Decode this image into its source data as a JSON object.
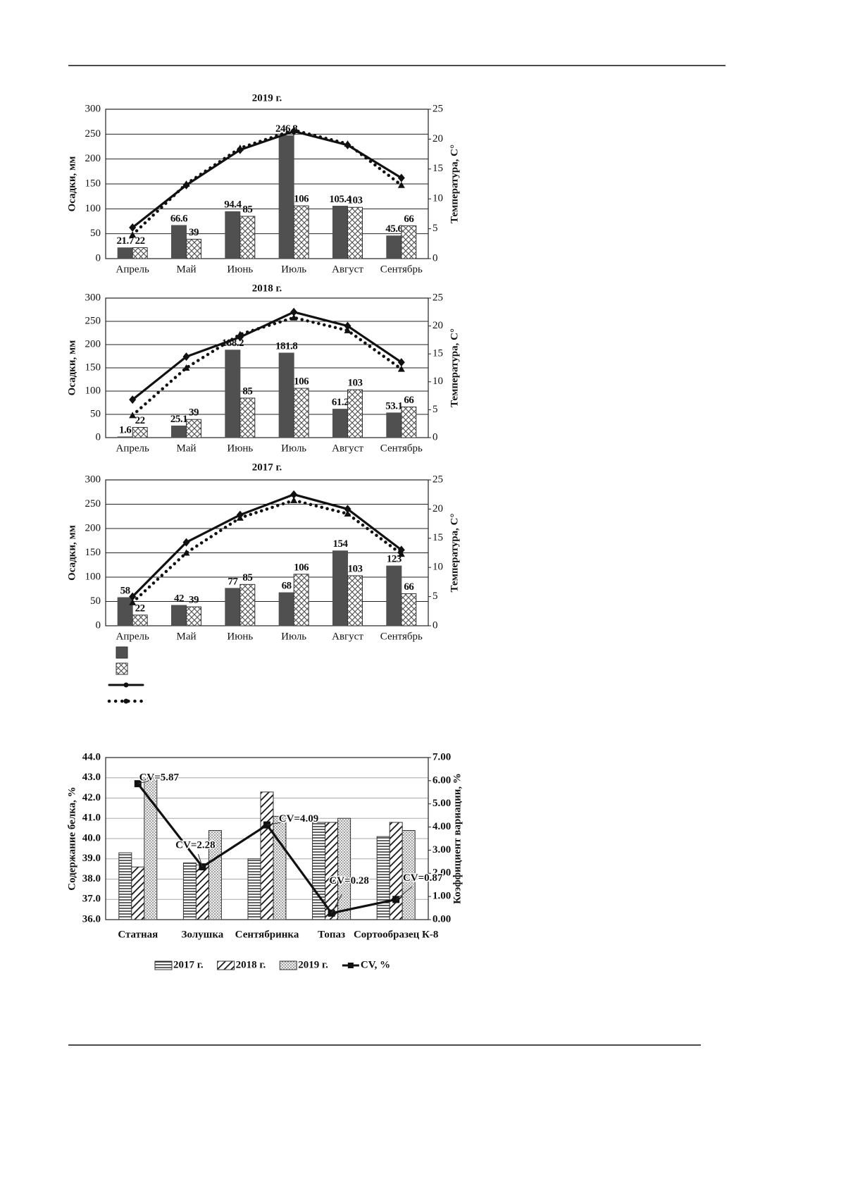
{
  "chart_data": [
    {
      "type": "bar",
      "title": "2019 г.",
      "ylabel": "Осадки, мм",
      "y2label": "Температура, С°",
      "categories": [
        "Апрель",
        "Май",
        "Июнь",
        "Июль",
        "Август",
        "Сентябрь"
      ],
      "ylim": [
        0,
        300
      ],
      "yticks": [
        0,
        50,
        100,
        150,
        200,
        250,
        300
      ],
      "y2lim": [
        0,
        25
      ],
      "y2ticks": [
        0,
        5,
        10,
        15,
        20,
        25
      ],
      "grid": true,
      "series": [
        {
          "kind": "bar",
          "pattern": "solid",
          "color": "#505050",
          "values": [
            21.7,
            66.6,
            94.4,
            246.8,
            105.4,
            45.6
          ]
        },
        {
          "kind": "bar",
          "pattern": "crosshatch",
          "color": "#505050",
          "values": [
            22,
            39,
            85,
            106,
            103,
            66
          ]
        },
        {
          "kind": "line",
          "axis": "y2",
          "style": "solid",
          "marker": "diamond",
          "color": "#111111",
          "values": [
            5.2,
            12.3,
            18.2,
            21.3,
            19.0,
            13.5
          ]
        },
        {
          "kind": "line",
          "axis": "y2",
          "style": "dotted",
          "marker": "triangle",
          "color": "#111111",
          "values": [
            4.0,
            12.5,
            18.5,
            21.5,
            19.2,
            12.3
          ]
        }
      ]
    },
    {
      "type": "bar",
      "title": "2018 г.",
      "ylabel": "Осадки, мм",
      "y2label": "Температура, С°",
      "categories": [
        "Апрель",
        "Май",
        "Июнь",
        "Июль",
        "Август",
        "Сентябрь"
      ],
      "ylim": [
        0,
        300
      ],
      "yticks": [
        0,
        50,
        100,
        150,
        200,
        250,
        300
      ],
      "y2lim": [
        0,
        25
      ],
      "y2ticks": [
        0,
        5,
        10,
        15,
        20,
        25
      ],
      "grid": true,
      "series": [
        {
          "kind": "bar",
          "pattern": "solid",
          "color": "#505050",
          "values": [
            1.6,
            25.1,
            188.2,
            181.8,
            61.2,
            53.1
          ]
        },
        {
          "kind": "bar",
          "pattern": "crosshatch",
          "color": "#505050",
          "values": [
            22,
            39,
            85,
            106,
            103,
            66
          ]
        },
        {
          "kind": "line",
          "axis": "y2",
          "style": "solid",
          "marker": "diamond",
          "color": "#111111",
          "values": [
            6.8,
            14.5,
            18.0,
            22.5,
            20.0,
            13.5
          ]
        },
        {
          "kind": "line",
          "axis": "y2",
          "style": "dotted",
          "marker": "triangle",
          "color": "#111111",
          "values": [
            4.0,
            12.5,
            18.5,
            21.5,
            19.2,
            12.3
          ]
        }
      ]
    },
    {
      "type": "bar",
      "title": "2017 г.",
      "ylabel": "Осадки, мм",
      "y2label": "Температура, С°",
      "categories": [
        "Апрель",
        "Май",
        "Июнь",
        "Июль",
        "Август",
        "Сентябрь"
      ],
      "ylim": [
        0,
        300
      ],
      "yticks": [
        0,
        50,
        100,
        150,
        200,
        250,
        300
      ],
      "y2lim": [
        0,
        25
      ],
      "y2ticks": [
        0,
        5,
        10,
        15,
        20,
        25
      ],
      "grid": true,
      "legend": "bottom-left",
      "series": [
        {
          "kind": "bar",
          "pattern": "solid",
          "color": "#505050",
          "values": [
            58,
            42,
            77,
            68,
            154,
            123
          ]
        },
        {
          "kind": "bar",
          "pattern": "crosshatch",
          "color": "#505050",
          "values": [
            22,
            39,
            85,
            106,
            103,
            66
          ]
        },
        {
          "kind": "line",
          "axis": "y2",
          "style": "solid",
          "marker": "diamond",
          "color": "#111111",
          "values": [
            5.0,
            14.3,
            19.0,
            22.5,
            20.0,
            13.0
          ]
        },
        {
          "kind": "line",
          "axis": "y2",
          "style": "dotted",
          "marker": "triangle",
          "color": "#111111",
          "values": [
            4.0,
            12.5,
            18.5,
            21.5,
            19.2,
            12.3
          ]
        }
      ]
    },
    {
      "type": "bar",
      "ylabel": "Содержание белка, %",
      "y2label": "Коэффициент вариации, %",
      "categories": [
        "Статная",
        "Золушка",
        "Сентябринка",
        "Топаз",
        "Сортообразец К-8"
      ],
      "ylim": [
        36,
        44
      ],
      "yticks": [
        {
          "value": 36,
          "label": "36.0"
        },
        {
          "value": 37,
          "label": "37.0"
        },
        {
          "value": 38,
          "label": "38.0"
        },
        {
          "value": 39,
          "label": "39.0"
        },
        {
          "value": 40,
          "label": "40.0"
        },
        {
          "value": 41,
          "label": "41.0"
        },
        {
          "value": 42,
          "label": "42.0"
        },
        {
          "value": 43,
          "label": "43.0"
        },
        {
          "value": 44,
          "label": "44.0"
        }
      ],
      "y2lim": [
        0,
        7
      ],
      "y2ticks": [
        {
          "value": 0,
          "label": "0.00"
        },
        {
          "value": 1,
          "label": "1.00"
        },
        {
          "value": 2,
          "label": "2.00"
        },
        {
          "value": 3,
          "label": "3.00"
        },
        {
          "value": 4,
          "label": "4.00"
        },
        {
          "value": 5,
          "label": "5.00"
        },
        {
          "value": 6,
          "label": "6.00"
        },
        {
          "value": 7,
          "label": "7.00"
        }
      ],
      "grid": true,
      "legend": "bottom",
      "series": [
        {
          "name": "2017 г.",
          "kind": "bar",
          "pattern": "hstripes",
          "color": "#333333",
          "values": [
            39.3,
            38.8,
            39.0,
            40.8,
            40.1
          ]
        },
        {
          "name": "2018 г.",
          "kind": "bar",
          "pattern": "diagonal",
          "color": "#333333",
          "values": [
            38.6,
            38.7,
            42.3,
            40.8,
            40.8
          ]
        },
        {
          "name": "2019 г.",
          "kind": "bar",
          "pattern": "dots",
          "color": "#333333",
          "values": [
            43.0,
            40.4,
            41.1,
            41.0,
            40.4
          ]
        },
        {
          "name": "CV, %",
          "kind": "line",
          "axis": "y2",
          "style": "solid",
          "marker": "square",
          "color": "#111111",
          "values": [
            5.87,
            2.28,
            4.09,
            0.28,
            0.87
          ],
          "value_labels": [
            "CV=5.87",
            "CV=2.28",
            "CV=4.09",
            "CV=0.28",
            "CV=0.87"
          ]
        }
      ]
    }
  ]
}
